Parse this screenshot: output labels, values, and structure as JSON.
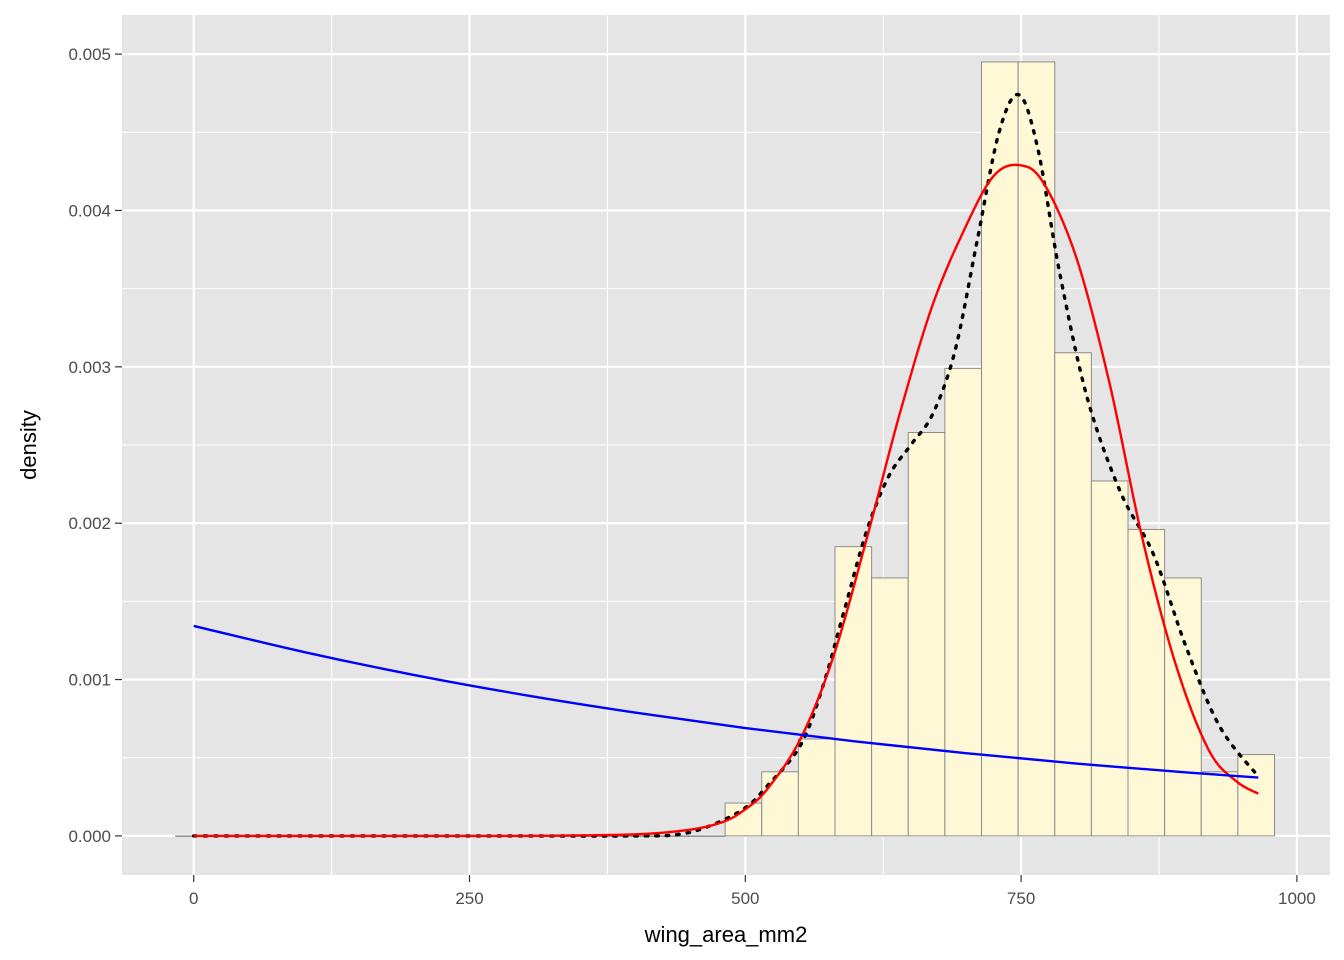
{
  "chart_data": {
    "type": "bar",
    "title": "",
    "xlabel": "wing_area_mm2",
    "ylabel": "density",
    "xlim": [
      -65,
      1030
    ],
    "ylim": [
      -0.00025,
      0.00525
    ],
    "x_ticks": [
      0,
      250,
      500,
      750,
      1000
    ],
    "x_tick_labels": [
      "0",
      "250",
      "500",
      "750",
      "1000"
    ],
    "y_ticks": [
      0,
      0.001,
      0.002,
      0.003,
      0.004,
      0.005
    ],
    "y_tick_labels": [
      "0.000",
      "0.001",
      "0.002",
      "0.003",
      "0.004",
      "0.005"
    ],
    "grid": true,
    "colors": {
      "panel": "#e5e5e5",
      "grid_major": "#ffffff",
      "bar_fill": "#fff8d6",
      "bar_stroke": "#8c8c8c",
      "density_kde": "#000000",
      "normal_fit": "#ff0000",
      "exponential_fit": "#0000ff"
    },
    "histogram": {
      "bin_width": 33.2,
      "bin_edges": [
        -16.3,
        16.9,
        50.1,
        83.3,
        116.5,
        149.7,
        182.9,
        216.1,
        249.3,
        282.5,
        315.7,
        348.9,
        382.1,
        415.3,
        448.5,
        481.7,
        514.9,
        548.1,
        581.3,
        614.5,
        647.7,
        680.9,
        714.1,
        747.3,
        780.5,
        813.7,
        846.9,
        880.1,
        913.3,
        946.5,
        979.7
      ],
      "values": [
        0,
        0,
        0,
        0,
        0,
        0,
        0,
        0,
        0,
        0,
        0,
        0,
        0,
        0,
        0,
        0.00021,
        0.00041,
        0.00062,
        0.00185,
        0.00165,
        0.00258,
        0.00299,
        0.00495,
        0.00495,
        0.00309,
        0.00227,
        0.00196,
        0.00165,
        0.00041,
        0.00052
      ]
    },
    "series": [
      {
        "style": "dotted",
        "color": "#000000",
        "x": [
          0,
          100,
          200,
          300,
          400,
          440,
          470,
          500,
          520,
          550,
          570,
          590,
          610,
          630,
          650,
          670,
          690,
          710,
          730,
          748,
          765,
          785,
          810,
          840,
          870,
          900,
          930,
          965
        ],
        "values": [
          0,
          0,
          0,
          0,
          0,
          1e-05,
          7e-05,
          0.00018,
          0.00032,
          0.00058,
          0.00095,
          0.00145,
          0.00195,
          0.0023,
          0.0025,
          0.0027,
          0.0031,
          0.0038,
          0.0045,
          0.00474,
          0.0044,
          0.0036,
          0.0028,
          0.0022,
          0.0018,
          0.0012,
          0.0007,
          0.00038
        ]
      },
      {
        "style": "solid",
        "color": "#ff0000",
        "x": [
          0,
          100,
          200,
          300,
          400,
          450,
          480,
          500,
          520,
          550,
          580,
          610,
          640,
          670,
          700,
          725,
          748,
          770,
          800,
          830,
          860,
          890,
          920,
          945,
          965
        ],
        "values": [
          0,
          0,
          0,
          0,
          1e-05,
          4e-05,
          9e-05,
          0.00017,
          0.0003,
          0.00062,
          0.00115,
          0.0019,
          0.0027,
          0.0034,
          0.0039,
          0.00422,
          0.00429,
          0.00418,
          0.0037,
          0.0029,
          0.0019,
          0.0011,
          0.00055,
          0.00035,
          0.00027
        ]
      },
      {
        "style": "solid",
        "color": "#0000ff",
        "x": [
          0,
          100,
          200,
          300,
          400,
          500,
          600,
          700,
          800,
          900,
          965
        ],
        "values": [
          0.001343,
          0.001176,
          0.001029,
          0.000901,
          0.000789,
          0.00069,
          0.000604,
          0.000529,
          0.000463,
          0.000406,
          0.000373
        ]
      }
    ]
  }
}
